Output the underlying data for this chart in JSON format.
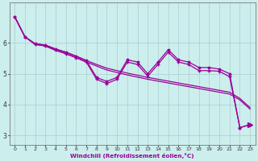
{
  "xlabel": "Windchill (Refroidissement éolien,°C)",
  "background_color": "#cceeed",
  "grid_color": "#aacccc",
  "line_color": "#990099",
  "xlim": [
    -0.5,
    23.5
  ],
  "ylim": [
    2.7,
    7.3
  ],
  "yticks": [
    3,
    4,
    5,
    6
  ],
  "xticks": [
    0,
    1,
    2,
    3,
    4,
    5,
    6,
    7,
    8,
    9,
    10,
    11,
    12,
    13,
    14,
    15,
    16,
    17,
    18,
    19,
    20,
    21,
    22,
    23
  ],
  "series": {
    "line_smooth1": [
      6.85,
      6.2,
      5.97,
      5.93,
      5.8,
      5.7,
      5.57,
      5.43,
      5.3,
      5.18,
      5.1,
      5.02,
      4.95,
      4.88,
      4.82,
      4.76,
      4.7,
      4.64,
      4.58,
      4.52,
      4.46,
      4.4,
      4.2,
      3.9
    ],
    "line_smooth2": [
      6.85,
      6.2,
      5.95,
      5.9,
      5.76,
      5.65,
      5.52,
      5.38,
      5.25,
      5.12,
      5.04,
      4.96,
      4.89,
      4.82,
      4.76,
      4.7,
      4.64,
      4.58,
      4.52,
      4.46,
      4.4,
      4.34,
      4.15,
      3.85
    ],
    "line_star": [
      6.85,
      6.2,
      5.97,
      5.93,
      5.8,
      5.7,
      5.57,
      5.43,
      4.88,
      4.75,
      4.88,
      5.45,
      5.38,
      5.0,
      5.38,
      5.78,
      5.45,
      5.38,
      5.2,
      5.2,
      5.15,
      5.0,
      3.25,
      3.35
    ],
    "line_plus": [
      6.85,
      6.2,
      5.95,
      5.9,
      5.76,
      5.65,
      5.52,
      5.38,
      4.82,
      4.68,
      4.82,
      5.38,
      5.3,
      4.92,
      5.3,
      5.7,
      5.38,
      5.3,
      5.1,
      5.1,
      5.08,
      4.9,
      3.25,
      3.35
    ]
  }
}
